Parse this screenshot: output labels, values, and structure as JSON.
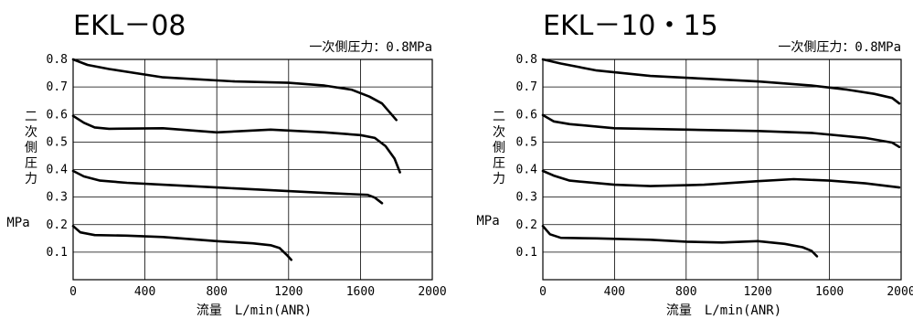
{
  "chart_data": [
    {
      "type": "line",
      "title": "EKL－08",
      "note": "一次側圧力：0.8MPa",
      "xlabel": "流量　L/min(ANR)",
      "ylabel_chars": [
        "二",
        "次",
        "側",
        "圧",
        "力"
      ],
      "yunit": "MPa",
      "xlim": [
        0,
        2000
      ],
      "ylim": [
        0,
        0.8
      ],
      "xticks": [
        0,
        400,
        800,
        1200,
        1600,
        2000
      ],
      "xtick_labels": [
        "0",
        "400",
        "800",
        "1200",
        "1600",
        "2000"
      ],
      "yticks": [
        0.1,
        0.2,
        0.3,
        0.4,
        0.5,
        0.6,
        0.7,
        0.8
      ],
      "ytick_labels": [
        "0.1",
        "0.2",
        "0.3",
        "0.4",
        "0.5",
        "0.6",
        "0.7",
        "0.8"
      ],
      "grid": true,
      "series": [
        {
          "x": [
            0,
            80,
            200,
            500,
            900,
            1200,
            1400,
            1550,
            1650,
            1720,
            1760,
            1800
          ],
          "y": [
            0.8,
            0.78,
            0.765,
            0.735,
            0.72,
            0.715,
            0.705,
            0.69,
            0.665,
            0.64,
            0.61,
            0.58
          ]
        },
        {
          "x": [
            0,
            60,
            120,
            200,
            500,
            800,
            1100,
            1400,
            1600,
            1680,
            1740,
            1790,
            1820
          ],
          "y": [
            0.595,
            0.57,
            0.553,
            0.548,
            0.55,
            0.535,
            0.545,
            0.535,
            0.525,
            0.515,
            0.485,
            0.44,
            0.39
          ]
        },
        {
          "x": [
            0,
            60,
            150,
            300,
            500,
            800,
            1100,
            1400,
            1640,
            1680,
            1720
          ],
          "y": [
            0.395,
            0.375,
            0.36,
            0.352,
            0.345,
            0.335,
            0.325,
            0.315,
            0.308,
            0.298,
            0.278
          ]
        },
        {
          "x": [
            0,
            40,
            120,
            300,
            500,
            800,
            1000,
            1100,
            1150,
            1190,
            1215
          ],
          "y": [
            0.195,
            0.172,
            0.162,
            0.16,
            0.155,
            0.14,
            0.132,
            0.125,
            0.115,
            0.09,
            0.072
          ]
        }
      ]
    },
    {
      "type": "line",
      "title": "EKL－10・15",
      "note": "一次側圧力：0.8MPa",
      "xlabel": "流量　L/min(ANR)",
      "ylabel_chars": [
        "二",
        "次",
        "側",
        "圧",
        "力"
      ],
      "yunit": "MPa",
      "xlim": [
        0,
        2000
      ],
      "ylim": [
        0,
        0.8
      ],
      "xticks": [
        0,
        400,
        800,
        1200,
        1600,
        2000
      ],
      "xtick_labels": [
        "0",
        "400",
        "800",
        "1200",
        "1600",
        "2000"
      ],
      "yticks": [
        0.1,
        0.2,
        0.3,
        0.4,
        0.5,
        0.6,
        0.7,
        0.8
      ],
      "ytick_labels": [
        "0.1",
        "0.2",
        "0.3",
        "0.4",
        "0.5",
        "0.6",
        "0.7",
        "0.8"
      ],
      "grid": true,
      "series": [
        {
          "x": [
            0,
            100,
            300,
            600,
            900,
            1200,
            1500,
            1700,
            1850,
            1950,
            1990
          ],
          "y": [
            0.8,
            0.785,
            0.76,
            0.74,
            0.73,
            0.72,
            0.705,
            0.69,
            0.675,
            0.66,
            0.64
          ]
        },
        {
          "x": [
            0,
            60,
            150,
            400,
            800,
            1200,
            1500,
            1800,
            1950,
            1990
          ],
          "y": [
            0.598,
            0.575,
            0.565,
            0.55,
            0.545,
            0.54,
            0.533,
            0.515,
            0.498,
            0.482
          ]
        },
        {
          "x": [
            0,
            60,
            150,
            400,
            600,
            900,
            1200,
            1400,
            1600,
            1800,
            1990
          ],
          "y": [
            0.395,
            0.378,
            0.36,
            0.345,
            0.34,
            0.345,
            0.358,
            0.365,
            0.36,
            0.35,
            0.335
          ]
        },
        {
          "x": [
            0,
            40,
            100,
            300,
            600,
            800,
            1000,
            1200,
            1350,
            1450,
            1500,
            1530
          ],
          "y": [
            0.195,
            0.165,
            0.152,
            0.15,
            0.145,
            0.138,
            0.135,
            0.14,
            0.13,
            0.118,
            0.105,
            0.085
          ]
        }
      ]
    }
  ]
}
